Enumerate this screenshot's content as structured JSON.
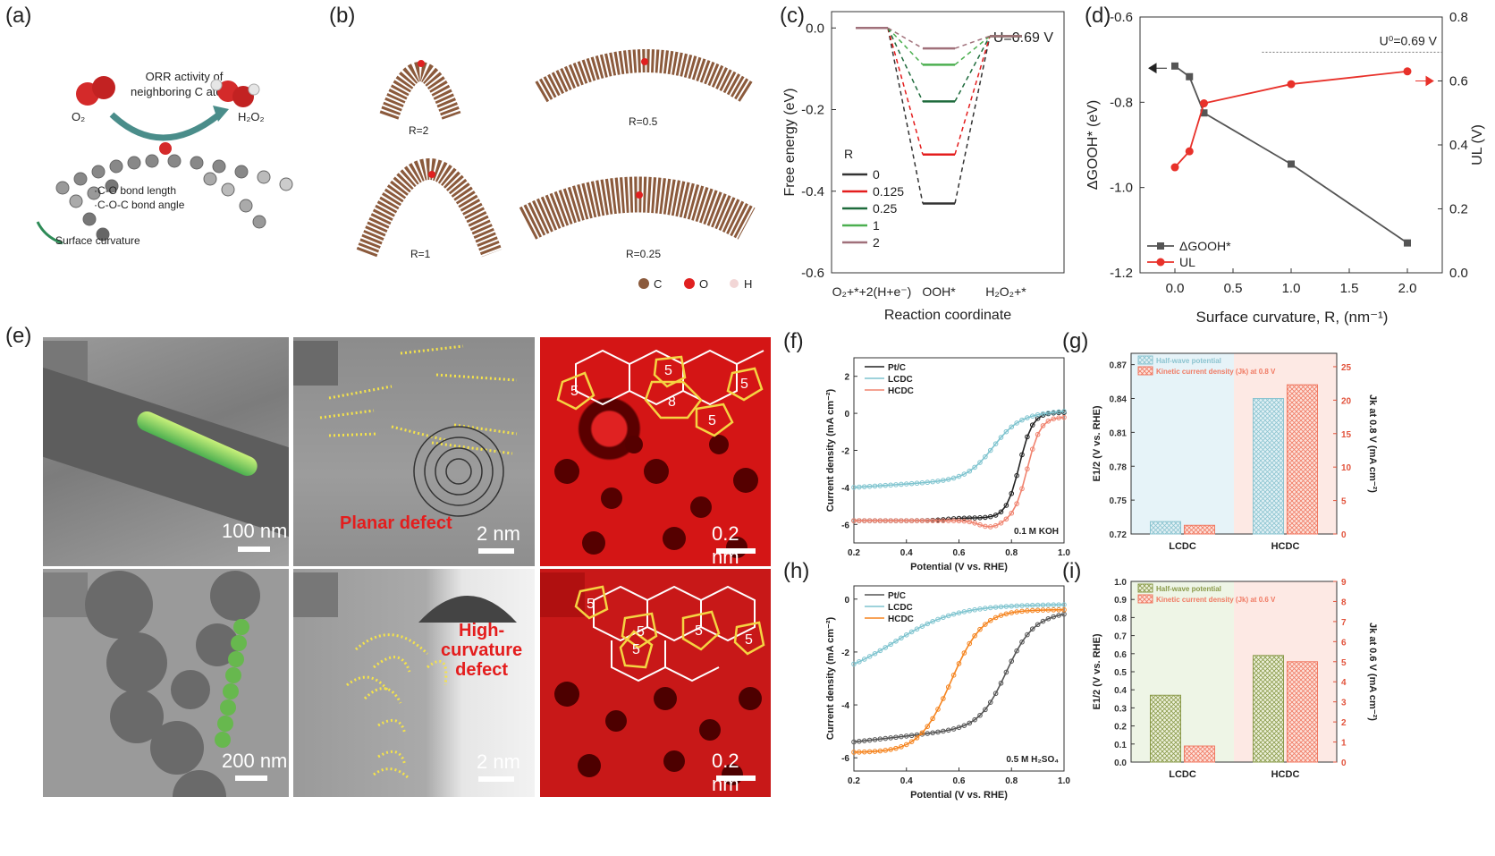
{
  "panels": {
    "a": {
      "letter": "(a)",
      "title_line1": "ORR activity of",
      "title_line2": "neighboring C atoms",
      "o2": "O₂",
      "h2o2": "H₂O₂",
      "bond1": "·C-O bond length",
      "bond2": "·C-O-C bond angle",
      "curv": "Surface curvature"
    },
    "b": {
      "letter": "(b)",
      "r2": "R=2",
      "r05": "R=0.5",
      "r1": "R=1",
      "r025": "R=0.25",
      "legend_c": "C",
      "legend_o": "O",
      "legend_h": "H"
    },
    "c": {
      "letter": "(c)"
    },
    "d": {
      "letter": "(d)"
    },
    "e": {
      "letter": "(e)",
      "s100": "100 nm",
      "s2a": "2 nm",
      "s02a": "0.2 nm",
      "s200": "200 nm",
      "s2b": "2 nm",
      "s02b": "0.2 nm",
      "planar": "Planar defect",
      "high1": "High-",
      "high2": "curvature",
      "high3": "defect"
    },
    "f": {
      "letter": "(f)"
    },
    "g": {
      "letter": "(g)"
    },
    "h": {
      "letter": "(h)"
    },
    "i": {
      "letter": "(i)"
    }
  },
  "colors": {
    "red": "#e41d1d",
    "green": "#2e8b57",
    "dark": "#333333",
    "teal": "#7fc4cf",
    "salmon": "#f0836f",
    "orange": "#f5841f"
  },
  "chart_data": [
    {
      "id": "c",
      "type": "line",
      "ylabel": "Free energy (eV)",
      "xlabel": "Reaction coordinate",
      "annotation": "U=0.69 V",
      "categories": [
        "O₂+*+2(H+e⁻)",
        "OOH*",
        "H₂O₂+*"
      ],
      "yticks": [
        "0.0",
        "-0.2",
        "-0.4",
        "-0.6"
      ],
      "ylim": [
        -0.6,
        0.04
      ],
      "legend_title": "R",
      "series": [
        {
          "name": "0",
          "color": "#333333",
          "values": [
            0,
            -0.43,
            -0.02
          ]
        },
        {
          "name": "0.125",
          "color": "#e41d1d",
          "values": [
            0,
            -0.31,
            -0.02
          ]
        },
        {
          "name": "0.25",
          "color": "#1e6b3c",
          "values": [
            0,
            -0.18,
            -0.02
          ]
        },
        {
          "name": "1",
          "color": "#4caf50",
          "values": [
            0,
            -0.09,
            -0.02
          ]
        },
        {
          "name": "2",
          "color": "#a0707a",
          "values": [
            0,
            -0.05,
            -0.02
          ]
        }
      ]
    },
    {
      "id": "d",
      "type": "line",
      "xlabel": "Surface curvature, R, (nm⁻¹)",
      "ylabel_left": "ΔGOOH* (eV)",
      "ylabel_right": "UL (V)",
      "annotation": "U⁰=0.69 V",
      "xticks": [
        "0.0",
        "0.5",
        "1.0",
        "1.5",
        "2.0"
      ],
      "yticks_left": [
        "-0.6",
        "-0.8",
        "-1.0",
        "-1.2"
      ],
      "yticks_right": [
        "0.0",
        "0.2",
        "0.4",
        "0.6",
        "0.8"
      ],
      "xlim": [
        -0.3,
        2.3
      ],
      "ylim_left": [
        -1.2,
        -0.6
      ],
      "ylim_right": [
        0.0,
        0.8
      ],
      "series": [
        {
          "name": "ΔGOOH*",
          "color": "#555555",
          "x": [
            0,
            0.125,
            0.25,
            1,
            2
          ],
          "y": [
            -0.715,
            -0.74,
            -0.825,
            -0.945,
            -1.13
          ]
        },
        {
          "name": "UL",
          "color": "#e8312a",
          "x": [
            0,
            0.125,
            0.25,
            1,
            2
          ],
          "y": [
            0.33,
            0.38,
            0.53,
            0.59,
            0.63
          ]
        }
      ]
    },
    {
      "id": "f",
      "type": "line",
      "ylabel": "Current density (mA cm⁻²)",
      "xlabel": "Potential (V vs. RHE)",
      "annotation": "0.1 M KOH",
      "xticks": [
        "0.2",
        "0.4",
        "0.6",
        "0.8",
        "1.0"
      ],
      "yticks": [
        "2",
        "0",
        "-2",
        "-4",
        "-6"
      ],
      "xlim": [
        0.2,
        1.0
      ],
      "ylim": [
        -7,
        3
      ],
      "series": [
        {
          "name": "Pt/C",
          "color": "#222222"
        },
        {
          "name": "LCDC",
          "color": "#7fc4cf"
        },
        {
          "name": "HCDC",
          "color": "#f0836f"
        }
      ]
    },
    {
      "id": "g",
      "type": "bar",
      "categories": [
        "LCDC",
        "HCDC"
      ],
      "ylabel_left": "E1/2 (V vs. RHE)",
      "ylabel_right": "Jk at 0.8 V (mA cm⁻²)",
      "yticks_left": [
        "0.72",
        "0.75",
        "0.78",
        "0.81",
        "0.84",
        "0.87"
      ],
      "yticks_right": [
        "0",
        "5",
        "10",
        "15",
        "20",
        "25"
      ],
      "ylim_left": [
        0.72,
        0.88
      ],
      "ylim_right": [
        0,
        27
      ],
      "series": [
        {
          "name": "Half-wave potential",
          "values": [
            0.731,
            0.84
          ]
        },
        {
          "name": "Kinetic current density (Jk) at 0.8 V",
          "values": [
            1.3,
            22.3
          ]
        }
      ]
    },
    {
      "id": "h",
      "type": "line",
      "ylabel": "Current density (mA cm⁻²)",
      "xlabel": "Potential (V vs. RHE)",
      "annotation": "0.5 M H₂SO₄",
      "xticks": [
        "0.2",
        "0.4",
        "0.6",
        "0.8",
        "1.0"
      ],
      "yticks": [
        "0",
        "-2",
        "-4",
        "-6"
      ],
      "xlim": [
        0.2,
        1.0
      ],
      "ylim": [
        -6.5,
        0.5
      ],
      "series": [
        {
          "name": "Pt/C",
          "color": "#555555"
        },
        {
          "name": "LCDC",
          "color": "#7fc4cf"
        },
        {
          "name": "HCDC",
          "color": "#f5841f"
        }
      ]
    },
    {
      "id": "i",
      "type": "bar",
      "categories": [
        "LCDC",
        "HCDC"
      ],
      "ylabel_left": "E1/2 (V vs. RHE)",
      "ylabel_right": "Jk at 0.6 V (mA cm⁻²)",
      "yticks_left": [
        "0.0",
        "0.1",
        "0.2",
        "0.3",
        "0.4",
        "0.5",
        "0.6",
        "0.7",
        "0.8",
        "0.9",
        "1.0"
      ],
      "yticks_right": [
        "0",
        "1",
        "2",
        "3",
        "4",
        "5",
        "6",
        "7",
        "8",
        "9"
      ],
      "ylim_left": [
        0,
        1.0
      ],
      "ylim_right": [
        0,
        9
      ],
      "series": [
        {
          "name": "Half-wave potential",
          "values": [
            0.37,
            0.59
          ]
        },
        {
          "name": "Kinetic current density (Jk) at 0.6 V",
          "values": [
            0.8,
            5.0
          ]
        }
      ]
    }
  ]
}
